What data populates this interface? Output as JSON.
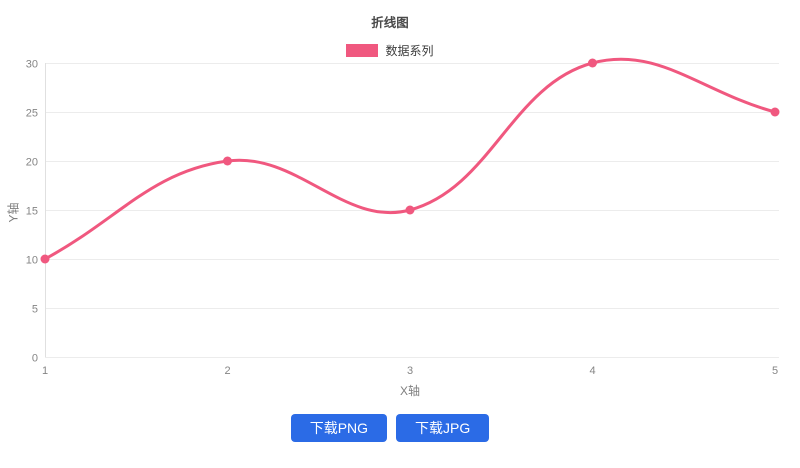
{
  "chart_data": {
    "type": "line",
    "title": "折线图",
    "x": [
      1,
      2,
      3,
      4,
      5
    ],
    "series": [
      {
        "name": "数据系列",
        "values": [
          10,
          20,
          15,
          30,
          25
        ],
        "color": "#f0587f"
      }
    ],
    "xlabel": "X轴",
    "ylabel": "Y轴",
    "ylim": [
      0,
      30
    ],
    "yticks": [
      0,
      5,
      10,
      15,
      20,
      25,
      30
    ],
    "grid": "horizontal-only",
    "legend_position": "top-center",
    "smooth": true,
    "show_points": true
  },
  "buttons": [
    {
      "label": "下载PNG"
    },
    {
      "label": "下载JPG"
    }
  ],
  "colors": {
    "background": "#ffffff",
    "grid": "#ececec",
    "axis": "#e0e0e0",
    "tick_label": "#858585",
    "axis_title": "#7f7f7f",
    "chart_title": "#4a4a4a",
    "legend_text": "#3a3a3a",
    "series": "#f0587f",
    "button_bg": "#2b6be6",
    "button_text": "#ffffff"
  }
}
